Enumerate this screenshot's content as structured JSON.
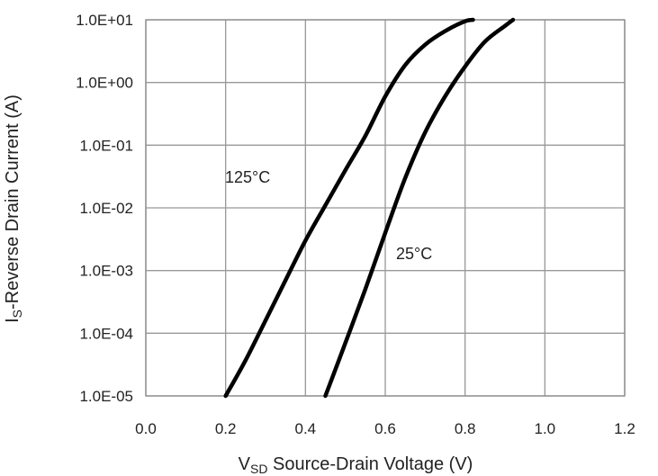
{
  "chart_data": {
    "type": "line",
    "title": "",
    "xlabel": {
      "main": "V",
      "sub": "SD",
      "rest": " Source-Drain Voltage (V)"
    },
    "ylabel": {
      "main": "I",
      "sub": "S",
      "rest": "-Reverse Drain Current (A)"
    },
    "x_scale": "linear",
    "y_scale": "log",
    "xlim": [
      0.0,
      1.2
    ],
    "ylim": [
      1e-05,
      10
    ],
    "x_ticks": [
      0.0,
      0.2,
      0.4,
      0.6,
      0.8,
      1.0,
      1.2
    ],
    "x_tick_labels": [
      "0.0",
      "0.2",
      "0.4",
      "0.6",
      "0.8",
      "1.0",
      "1.2"
    ],
    "y_ticks": [
      1e-05,
      0.0001,
      0.001,
      0.01,
      0.1,
      1,
      10
    ],
    "y_tick_labels": [
      "1.0E-05",
      "1.0E-04",
      "1.0E-03",
      "1.0E-02",
      "1.0E-01",
      "1.0E+00",
      "1.0E+01"
    ],
    "grid": true,
    "series": [
      {
        "label": "125°C",
        "color": "#000000",
        "x": [
          0.2,
          0.25,
          0.3,
          0.35,
          0.4,
          0.45,
          0.5,
          0.55,
          0.6,
          0.65,
          0.7,
          0.75,
          0.8,
          0.82
        ],
        "y": [
          1e-05,
          3.7e-05,
          0.00016,
          0.0007,
          0.003,
          0.011,
          0.04,
          0.14,
          0.6,
          1.9,
          4.0,
          6.6,
          9.5,
          10
        ]
      },
      {
        "label": "25°C",
        "color": "#000000",
        "x": [
          0.45,
          0.5,
          0.55,
          0.6,
          0.65,
          0.7,
          0.75,
          0.8,
          0.85,
          0.9,
          0.92
        ],
        "y": [
          1e-05,
          7e-05,
          0.0005,
          0.004,
          0.03,
          0.16,
          0.6,
          1.8,
          4.5,
          8.0,
          10
        ]
      }
    ]
  }
}
